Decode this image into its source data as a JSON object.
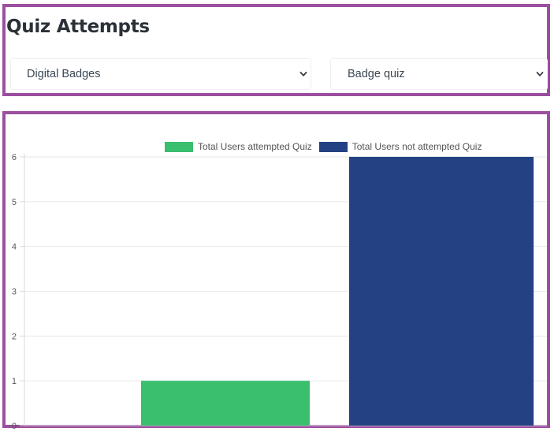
{
  "header": {
    "title": "Quiz Attempts"
  },
  "filters": {
    "course_select": {
      "value": "Digital Badges"
    },
    "quiz_select": {
      "value": "Badge quiz"
    }
  },
  "icons": {
    "dropdown": "chevron-down-icon"
  },
  "colors": {
    "panel_border": "#9b4f9f",
    "attempted": "#39bf6e",
    "not_attempted": "#234183"
  },
  "chart_data": {
    "type": "bar",
    "categories": [
      "",
      ""
    ],
    "series": [
      {
        "name": "Total Users attempted Quiz",
        "values": [
          1,
          0
        ],
        "color": "#39bf6e"
      },
      {
        "name": "Total Users not attempted Quiz",
        "values": [
          0,
          6
        ],
        "color": "#234183"
      }
    ],
    "y_ticks": [
      "0",
      "1",
      "2",
      "3",
      "4",
      "5",
      "6"
    ],
    "ylim": [
      0,
      6
    ],
    "legend_position": "top-center",
    "grid": true
  }
}
